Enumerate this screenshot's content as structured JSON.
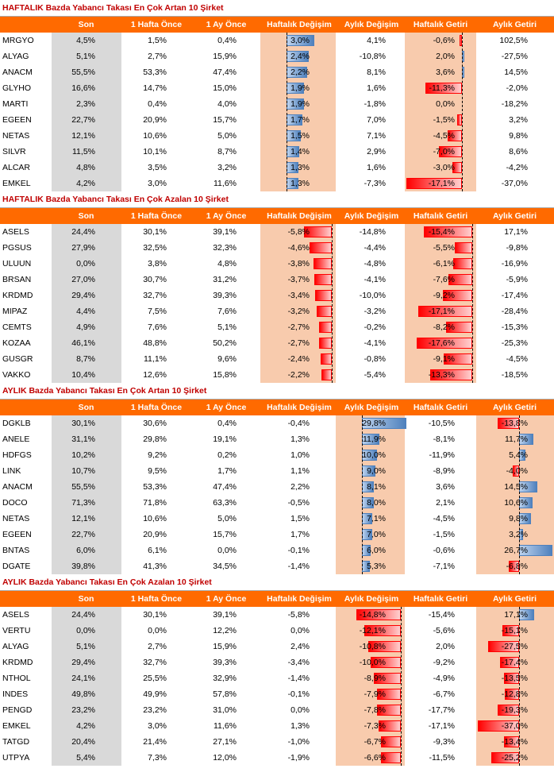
{
  "headers": [
    "Son",
    "1 Hafta Önce",
    "1 Ay Önce",
    "Haftalık Değişim",
    "Aylık Değişim",
    "Haftalık Getiri",
    "Aylık Getiri"
  ],
  "colors": {
    "header_bg": "#ff6a00",
    "title": "#c00000",
    "gray": "#d9d9d9",
    "peach": "#f8cbad",
    "bar_pos": "#4f81bd",
    "bar_neg": "#ff0000"
  },
  "sections": [
    {
      "title": "HAFTALIK Bazda Yabancı Takası En Çok Artan 10 Şirket",
      "highlight": [
        "wk_ch",
        "wk_ret"
      ],
      "bar_cols": [
        "wk_ch",
        "wk_ret"
      ],
      "rows": [
        {
          "name": "MRGYO",
          "son": "4,5%",
          "w": "1,5%",
          "m": "0,4%",
          "wk_ch": "3,0%",
          "mo_ch": "4,1%",
          "wk_ret": "-0,6%",
          "mo_ret": "102,5%"
        },
        {
          "name": "ALYAG",
          "son": "5,1%",
          "w": "2,7%",
          "m": "15,9%",
          "wk_ch": "2,4%",
          "mo_ch": "-10,8%",
          "wk_ret": "2,0%",
          "mo_ret": "-27,5%"
        },
        {
          "name": "ANACM",
          "son": "55,5%",
          "w": "53,3%",
          "m": "47,4%",
          "wk_ch": "2,2%",
          "mo_ch": "8,1%",
          "wk_ret": "3,6%",
          "mo_ret": "14,5%"
        },
        {
          "name": "GLYHO",
          "son": "16,6%",
          "w": "14,7%",
          "m": "15,0%",
          "wk_ch": "1,9%",
          "mo_ch": "1,6%",
          "wk_ret": "-11,3%",
          "mo_ret": "-2,0%"
        },
        {
          "name": "MARTI",
          "son": "2,3%",
          "w": "0,4%",
          "m": "4,0%",
          "wk_ch": "1,9%",
          "mo_ch": "-1,8%",
          "wk_ret": "0,0%",
          "mo_ret": "-18,2%"
        },
        {
          "name": "EGEEN",
          "son": "22,7%",
          "w": "20,9%",
          "m": "15,7%",
          "wk_ch": "1,7%",
          "mo_ch": "7,0%",
          "wk_ret": "-1,5%",
          "mo_ret": "3,2%"
        },
        {
          "name": "NETAS",
          "son": "12,1%",
          "w": "10,6%",
          "m": "5,0%",
          "wk_ch": "1,5%",
          "mo_ch": "7,1%",
          "wk_ret": "-4,5%",
          "mo_ret": "9,8%"
        },
        {
          "name": "SILVR",
          "son": "11,5%",
          "w": "10,1%",
          "m": "8,7%",
          "wk_ch": "1,4%",
          "mo_ch": "2,9%",
          "wk_ret": "-7,0%",
          "mo_ret": "8,6%"
        },
        {
          "name": "ALCAR",
          "son": "4,8%",
          "w": "3,5%",
          "m": "3,2%",
          "wk_ch": "1,3%",
          "mo_ch": "1,6%",
          "wk_ret": "-3,0%",
          "mo_ret": "-4,2%"
        },
        {
          "name": "EMKEL",
          "son": "4,2%",
          "w": "3,0%",
          "m": "11,6%",
          "wk_ch": "1,3%",
          "mo_ch": "-7,3%",
          "wk_ret": "-17,1%",
          "mo_ret": "-37,0%"
        }
      ]
    },
    {
      "title": "HAFTALIK Bazda Yabancı Takası En Çok Azalan 10 Şirket",
      "highlight": [
        "wk_ch",
        "wk_ret"
      ],
      "bar_cols": [
        "wk_ch",
        "wk_ret"
      ],
      "rows": [
        {
          "name": "ASELS",
          "son": "24,4%",
          "w": "30,1%",
          "m": "39,1%",
          "wk_ch": "-5,8%",
          "mo_ch": "-14,8%",
          "wk_ret": "-15,4%",
          "mo_ret": "17,1%"
        },
        {
          "name": "PGSUS",
          "son": "27,9%",
          "w": "32,5%",
          "m": "32,3%",
          "wk_ch": "-4,6%",
          "mo_ch": "-4,4%",
          "wk_ret": "-5,5%",
          "mo_ret": "-9,8%"
        },
        {
          "name": "ULUUN",
          "son": "0,0%",
          "w": "3,8%",
          "m": "4,8%",
          "wk_ch": "-3,8%",
          "mo_ch": "-4,8%",
          "wk_ret": "-6,1%",
          "mo_ret": "-16,9%"
        },
        {
          "name": "BRSAN",
          "son": "27,0%",
          "w": "30,7%",
          "m": "31,2%",
          "wk_ch": "-3,7%",
          "mo_ch": "-4,1%",
          "wk_ret": "-7,6%",
          "mo_ret": "-5,9%"
        },
        {
          "name": "KRDMD",
          "son": "29,4%",
          "w": "32,7%",
          "m": "39,3%",
          "wk_ch": "-3,4%",
          "mo_ch": "-10,0%",
          "wk_ret": "-9,2%",
          "mo_ret": "-17,4%"
        },
        {
          "name": "MIPAZ",
          "son": "4,4%",
          "w": "7,5%",
          "m": "7,6%",
          "wk_ch": "-3,2%",
          "mo_ch": "-3,2%",
          "wk_ret": "-17,1%",
          "mo_ret": "-28,4%"
        },
        {
          "name": "CEMTS",
          "son": "4,9%",
          "w": "7,6%",
          "m": "5,1%",
          "wk_ch": "-2,7%",
          "mo_ch": "-0,2%",
          "wk_ret": "-8,2%",
          "mo_ret": "-15,3%"
        },
        {
          "name": "KOZAA",
          "son": "46,1%",
          "w": "48,8%",
          "m": "50,2%",
          "wk_ch": "-2,7%",
          "mo_ch": "-4,1%",
          "wk_ret": "-17,6%",
          "mo_ret": "-25,3%"
        },
        {
          "name": "GUSGR",
          "son": "8,7%",
          "w": "11,1%",
          "m": "9,6%",
          "wk_ch": "-2,4%",
          "mo_ch": "-0,8%",
          "wk_ret": "-9,1%",
          "mo_ret": "-4,5%"
        },
        {
          "name": "VAKKO",
          "son": "10,4%",
          "w": "12,6%",
          "m": "15,8%",
          "wk_ch": "-2,2%",
          "mo_ch": "-5,4%",
          "wk_ret": "-13,3%",
          "mo_ret": "-18,5%"
        }
      ]
    },
    {
      "title": "AYLIK Bazda Yabancı Takası En Çok Artan 10 Şirket",
      "highlight": [
        "mo_ch",
        "mo_ret"
      ],
      "bar_cols": [
        "mo_ch",
        "mo_ret"
      ],
      "rows": [
        {
          "name": "DGKLB",
          "son": "30,1%",
          "w": "30,6%",
          "m": "0,4%",
          "wk_ch": "-0,4%",
          "mo_ch": "29,8%",
          "wk_ret": "-10,5%",
          "mo_ret": "-13,8%"
        },
        {
          "name": "ANELE",
          "son": "31,1%",
          "w": "29,8%",
          "m": "19,1%",
          "wk_ch": "1,3%",
          "mo_ch": "11,9%",
          "wk_ret": "-8,1%",
          "mo_ret": "11,7%"
        },
        {
          "name": "HDFGS",
          "son": "10,2%",
          "w": "9,2%",
          "m": "0,2%",
          "wk_ch": "1,0%",
          "mo_ch": "10,0%",
          "wk_ret": "-11,9%",
          "mo_ret": "5,4%"
        },
        {
          "name": "LINK",
          "son": "10,7%",
          "w": "9,5%",
          "m": "1,7%",
          "wk_ch": "1,1%",
          "mo_ch": "9,0%",
          "wk_ret": "-8,9%",
          "mo_ret": "-4,0%"
        },
        {
          "name": "ANACM",
          "son": "55,5%",
          "w": "53,3%",
          "m": "47,4%",
          "wk_ch": "2,2%",
          "mo_ch": "8,1%",
          "wk_ret": "3,6%",
          "mo_ret": "14,5%"
        },
        {
          "name": "DOCO",
          "son": "71,3%",
          "w": "71,8%",
          "m": "63,3%",
          "wk_ch": "-0,5%",
          "mo_ch": "8,0%",
          "wk_ret": "2,1%",
          "mo_ret": "10,6%"
        },
        {
          "name": "NETAS",
          "son": "12,1%",
          "w": "10,6%",
          "m": "5,0%",
          "wk_ch": "1,5%",
          "mo_ch": "7,1%",
          "wk_ret": "-4,5%",
          "mo_ret": "9,8%"
        },
        {
          "name": "EGEEN",
          "son": "22,7%",
          "w": "20,9%",
          "m": "15,7%",
          "wk_ch": "1,7%",
          "mo_ch": "7,0%",
          "wk_ret": "-1,5%",
          "mo_ret": "3,2%"
        },
        {
          "name": "BNTAS",
          "son": "6,0%",
          "w": "6,1%",
          "m": "0,0%",
          "wk_ch": "-0,1%",
          "mo_ch": "6,0%",
          "wk_ret": "-0,6%",
          "mo_ret": "26,7%"
        },
        {
          "name": "DGATE",
          "son": "39,8%",
          "w": "41,3%",
          "m": "34,5%",
          "wk_ch": "-1,4%",
          "mo_ch": "5,3%",
          "wk_ret": "-7,1%",
          "mo_ret": "-6,8%"
        }
      ]
    },
    {
      "title": "AYLIK Bazda Yabancı Takası En Çok Azalan 10 Şirket",
      "highlight": [
        "mo_ch",
        "mo_ret"
      ],
      "bar_cols": [
        "mo_ch",
        "mo_ret"
      ],
      "rows": [
        {
          "name": "ASELS",
          "son": "24,4%",
          "w": "30,1%",
          "m": "39,1%",
          "wk_ch": "-5,8%",
          "mo_ch": "-14,8%",
          "wk_ret": "-15,4%",
          "mo_ret": "17,1%"
        },
        {
          "name": "VERTU",
          "son": "0,0%",
          "w": "0,0%",
          "m": "12,2%",
          "wk_ch": "0,0%",
          "mo_ch": "-12,1%",
          "wk_ret": "-5,6%",
          "mo_ret": "-15,1%"
        },
        {
          "name": "ALYAG",
          "son": "5,1%",
          "w": "2,7%",
          "m": "15,9%",
          "wk_ch": "2,4%",
          "mo_ch": "-10,8%",
          "wk_ret": "2,0%",
          "mo_ret": "-27,5%"
        },
        {
          "name": "KRDMD",
          "son": "29,4%",
          "w": "32,7%",
          "m": "39,3%",
          "wk_ch": "-3,4%",
          "mo_ch": "-10,0%",
          "wk_ret": "-9,2%",
          "mo_ret": "-17,4%"
        },
        {
          "name": "NTHOL",
          "son": "24,1%",
          "w": "25,5%",
          "m": "32,9%",
          "wk_ch": "-1,4%",
          "mo_ch": "-8,9%",
          "wk_ret": "-4,9%",
          "mo_ret": "-13,5%"
        },
        {
          "name": "INDES",
          "son": "49,8%",
          "w": "49,9%",
          "m": "57,8%",
          "wk_ch": "-0,1%",
          "mo_ch": "-7,9%",
          "wk_ret": "-6,7%",
          "mo_ret": "-12,8%"
        },
        {
          "name": "PENGD",
          "son": "23,2%",
          "w": "23,2%",
          "m": "31,0%",
          "wk_ch": "0,0%",
          "mo_ch": "-7,8%",
          "wk_ret": "-17,7%",
          "mo_ret": "-19,3%"
        },
        {
          "name": "EMKEL",
          "son": "4,2%",
          "w": "3,0%",
          "m": "11,6%",
          "wk_ch": "1,3%",
          "mo_ch": "-7,3%",
          "wk_ret": "-17,1%",
          "mo_ret": "-37,0%"
        },
        {
          "name": "TATGD",
          "son": "20,4%",
          "w": "21,4%",
          "m": "27,1%",
          "wk_ch": "-1,0%",
          "mo_ch": "-6,7%",
          "wk_ret": "-9,3%",
          "mo_ret": "-13,4%"
        },
        {
          "name": "UTPYA",
          "son": "5,4%",
          "w": "7,3%",
          "m": "12,0%",
          "wk_ch": "-1,9%",
          "mo_ch": "-6,6%",
          "wk_ret": "-11,5%",
          "mo_ret": "-25,2%"
        }
      ]
    }
  ]
}
